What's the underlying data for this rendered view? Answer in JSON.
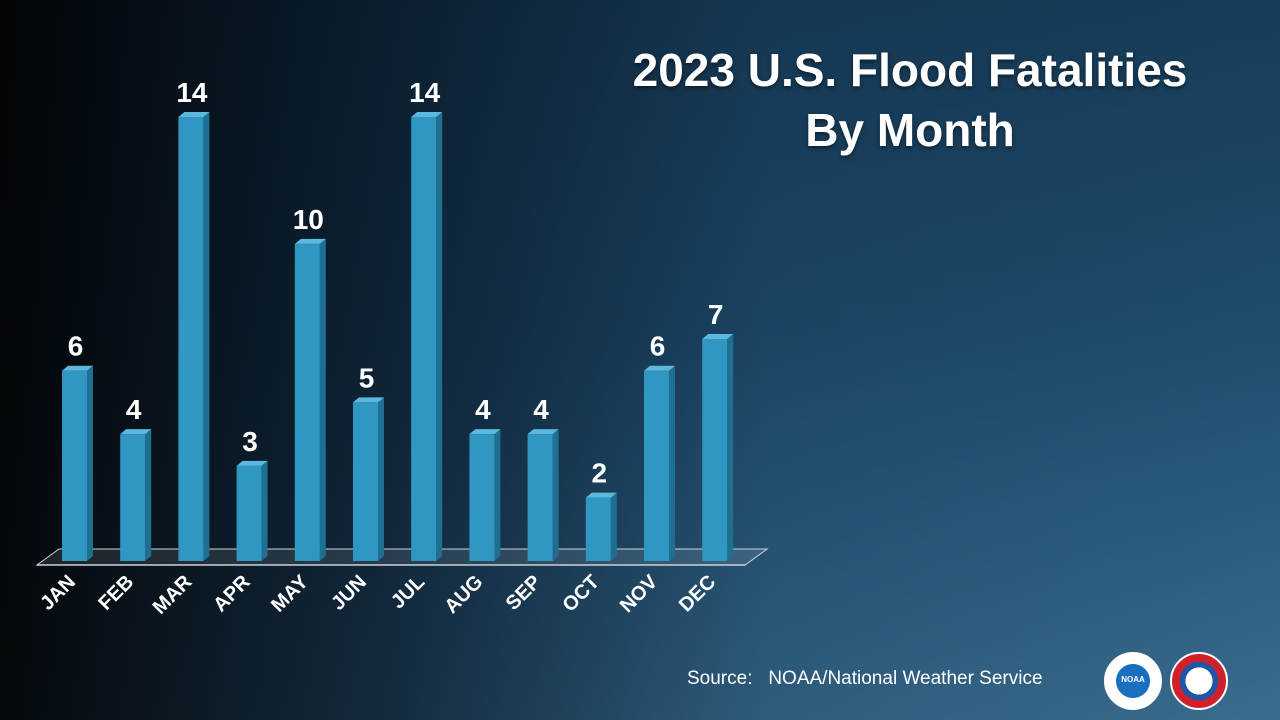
{
  "title_line1": "2023 U.S. Flood Fatalities",
  "title_line2": "By Month",
  "source_label": "Source:",
  "source_text": "NOAA/National Weather Service",
  "logos": {
    "left": "NOAA",
    "right": "NATIONAL WEATHER SERVICE"
  },
  "colors": {
    "bar_front": "#2f97c2",
    "bar_side": "#1e6f92",
    "bar_top": "#5cb8dc",
    "text": "#ffffff"
  },
  "chart_data": {
    "type": "bar",
    "categories": [
      "JAN",
      "FEB",
      "MAR",
      "APR",
      "MAY",
      "JUN",
      "JUL",
      "AUG",
      "SEP",
      "OCT",
      "NOV",
      "DEC"
    ],
    "values": [
      6,
      4,
      14,
      3,
      10,
      5,
      14,
      4,
      4,
      2,
      6,
      7
    ],
    "title": "2023 U.S. Flood Fatalities By Month",
    "xlabel": "",
    "ylabel": "",
    "ylim": [
      0,
      14
    ],
    "data_labels": true,
    "grid": false
  }
}
